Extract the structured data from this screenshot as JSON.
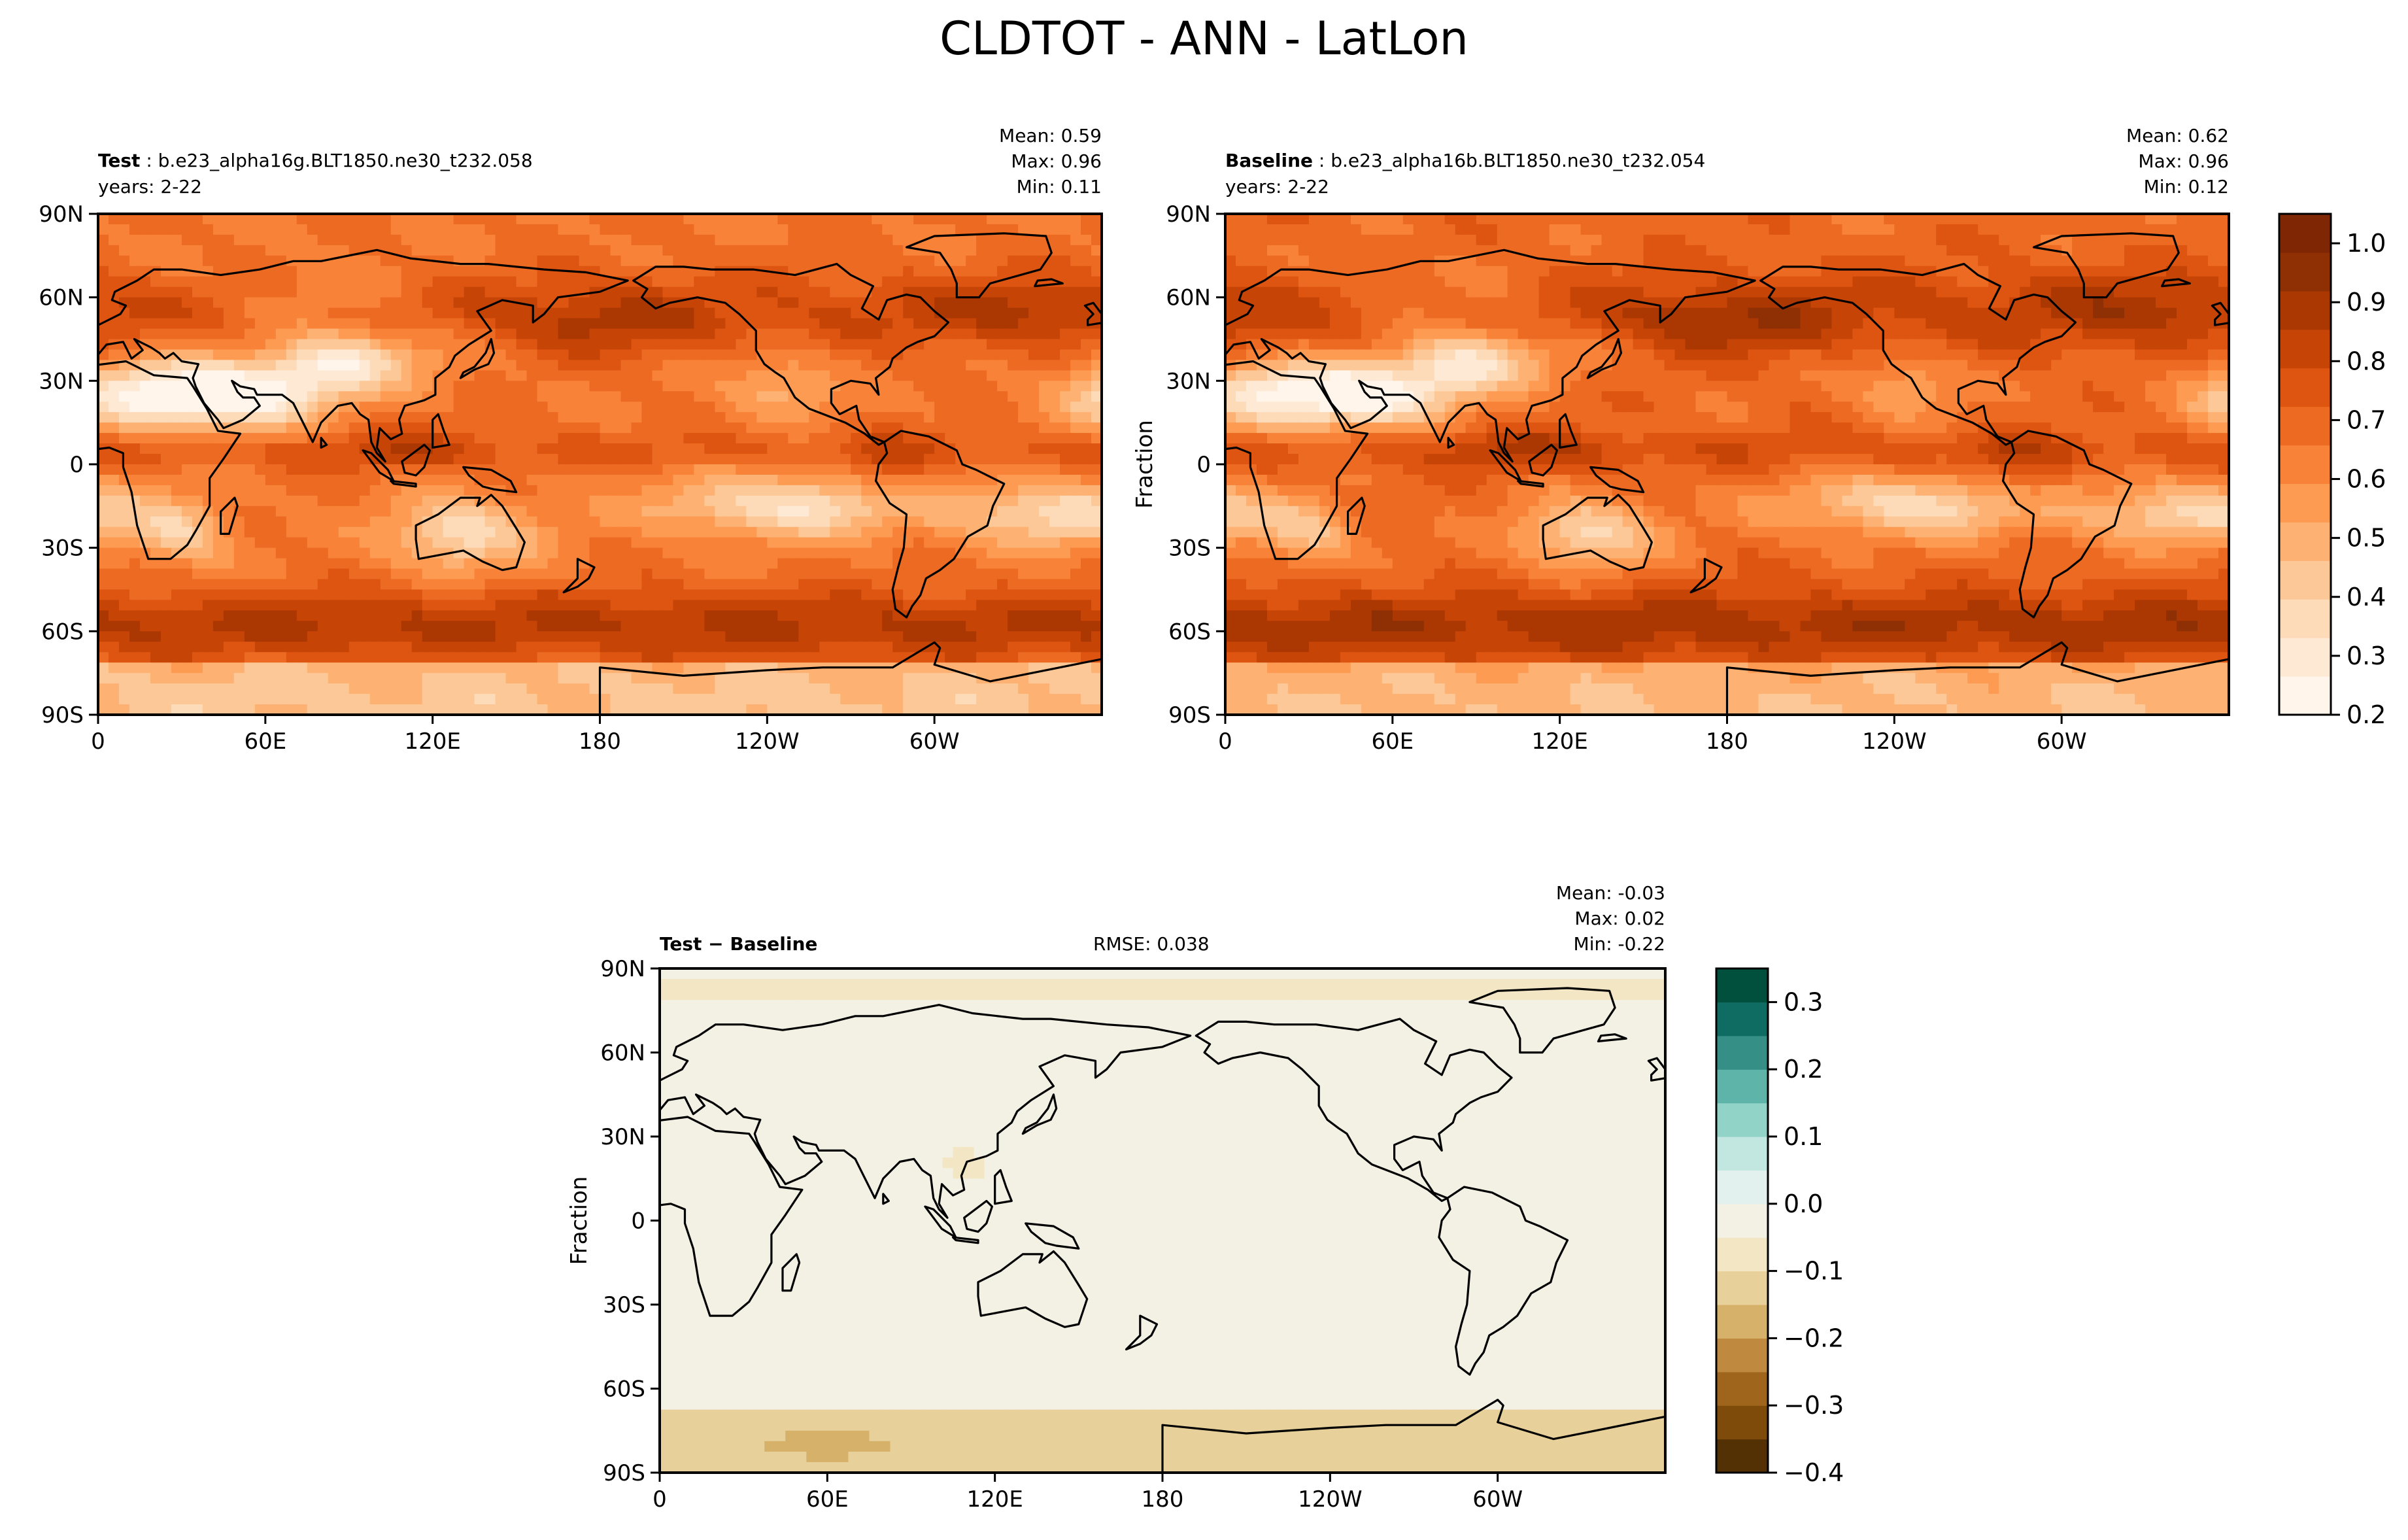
{
  "figure": {
    "title": "CLDTOT - ANN - LatLon"
  },
  "chart_data": [
    {
      "type": "heatmap",
      "panel": "test",
      "label_bold": "Test",
      "label_rest": ": b.e23_alpha16g.BLT1850.ne30_t232.058",
      "years": "years: 2-22",
      "stats": {
        "mean": "Mean:  0.59",
        "max": "Max:  0.96",
        "min": "Min:  0.11"
      },
      "x_ticks": [
        "0",
        "60E",
        "120E",
        "180",
        "120W",
        "60W"
      ],
      "y_ticks": [
        "90N",
        "60N",
        "30N",
        "0",
        "30S",
        "60S",
        "90S"
      ],
      "ylabel": "",
      "xlim": [
        0,
        360
      ],
      "ylim": [
        -90,
        90
      ],
      "colorbar": null
    },
    {
      "type": "heatmap",
      "panel": "baseline",
      "label_bold": "Baseline",
      "label_rest": ": b.e23_alpha16b.BLT1850.ne30_t232.054",
      "years": "years: 2-22",
      "stats": {
        "mean": "Mean:  0.62",
        "max": "Max:  0.96",
        "min": "Min:  0.12"
      },
      "x_ticks": [
        "0",
        "60E",
        "120E",
        "180",
        "120W",
        "60W"
      ],
      "y_ticks": [
        "90N",
        "60N",
        "30N",
        "0",
        "30S",
        "60S",
        "90S"
      ],
      "ylabel": "Fraction",
      "xlim": [
        0,
        360
      ],
      "ylim": [
        -90,
        90
      ],
      "colorbar": {
        "ticks": [
          "0.2",
          "0.3",
          "0.4",
          "0.5",
          "0.6",
          "0.7",
          "0.8",
          "0.9",
          "1.0"
        ],
        "range": [
          0.2,
          1.05
        ],
        "colors": [
          "#fff5eb",
          "#fee9d4",
          "#fddbb9",
          "#fdc897",
          "#fdb274",
          "#fd9b52",
          "#f78238",
          "#ec6a21",
          "#dd5510",
          "#c74407",
          "#ab3803",
          "#8e2f04",
          "#7f2704"
        ]
      }
    },
    {
      "type": "heatmap",
      "panel": "difference",
      "label_bold": "Test − Baseline",
      "rmse": "RMSE: 0.038",
      "stats": {
        "mean": "Mean: -0.03",
        "max": "Max:  0.02",
        "min": "Min: -0.22"
      },
      "x_ticks": [
        "0",
        "60E",
        "120E",
        "180",
        "120W",
        "60W"
      ],
      "y_ticks": [
        "90N",
        "60N",
        "30N",
        "0",
        "30S",
        "60S",
        "90S"
      ],
      "ylabel": "Fraction",
      "xlim": [
        0,
        360
      ],
      "ylim": [
        -90,
        90
      ],
      "colorbar": {
        "ticks": [
          "0.3",
          "0.2",
          "0.1",
          "0.0",
          "−0.1",
          "−0.2",
          "−0.3",
          "−0.4"
        ],
        "range": [
          -0.4,
          0.35
        ],
        "colors": [
          "#543005",
          "#7f4b0a",
          "#a0651c",
          "#bf8a3f",
          "#d6b16a",
          "#e8d09a",
          "#f3e6c4",
          "#f3f0e4",
          "#e2f0ee",
          "#c1e7e0",
          "#91d3c7",
          "#5fb4a9",
          "#358f86",
          "#0f6c63",
          "#01503e"
        ]
      }
    }
  ]
}
